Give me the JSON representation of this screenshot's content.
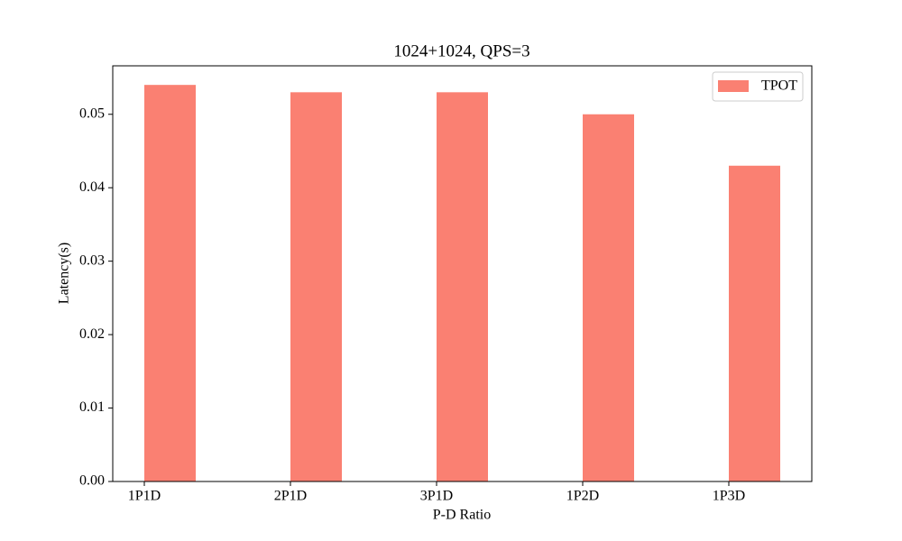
{
  "chart_data": {
    "type": "bar",
    "title": "1024+1024, QPS=3",
    "x_label": "P-D Ratio",
    "y_label": "Latency(s)",
    "categories": [
      "1P1D",
      "2P1D",
      "3P1D",
      "1P2D",
      "1P3D"
    ],
    "series": [
      {
        "name": "TPOT",
        "color": "#fa8072",
        "values": [
          0.054,
          0.053,
          0.053,
          0.05,
          0.043
        ]
      }
    ],
    "ylim": [
      0,
      0.0566
    ],
    "yticks": [
      {
        "value": 0,
        "label": "0.00"
      },
      {
        "value": 0.01,
        "label": "0.01"
      },
      {
        "value": 0.02,
        "label": "0.02"
      },
      {
        "value": 0.03,
        "label": "0.03"
      },
      {
        "value": 0.04,
        "label": "0.04"
      },
      {
        "value": 0.05,
        "label": "0.05"
      }
    ],
    "legend": "upper right",
    "grid": false
  }
}
